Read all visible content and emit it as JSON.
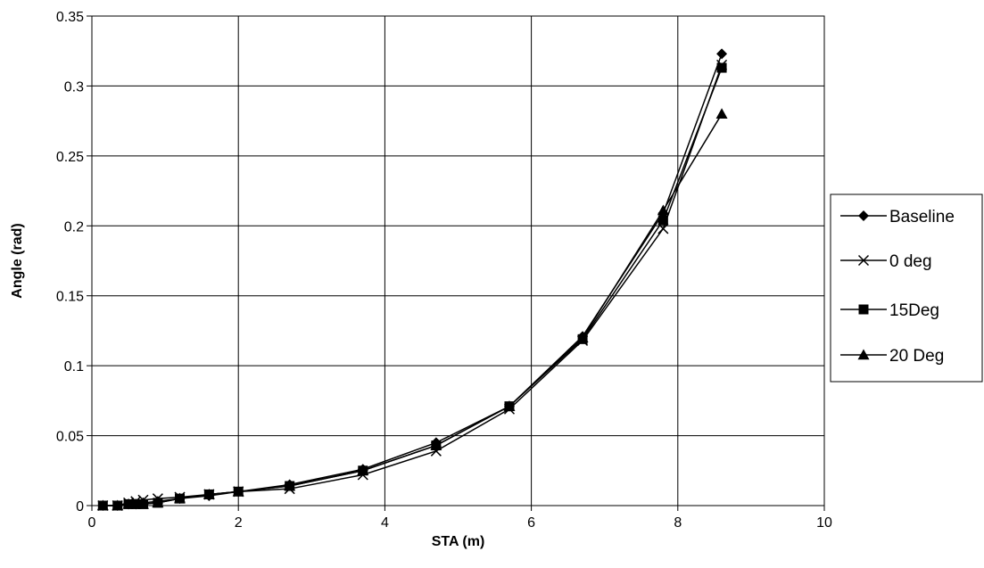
{
  "chart_data": {
    "type": "line",
    "title": "",
    "xlabel": "STA (m)",
    "ylabel": "Angle (rad)",
    "xlim": [
      0,
      10
    ],
    "ylim": [
      0,
      0.35
    ],
    "xticks": [
      0,
      2,
      4,
      6,
      8,
      10
    ],
    "xtick_labels": [
      "0",
      "2",
      "4",
      "6",
      "8",
      "10"
    ],
    "yticks": [
      0,
      0.05,
      0.1,
      0.15,
      0.2,
      0.25,
      0.3,
      0.35
    ],
    "ytick_labels": [
      "0",
      "0.05",
      "0.1",
      "0.15",
      "0.2",
      "0.25",
      "0.3",
      "0.35"
    ],
    "grid": true,
    "legend_position": "right",
    "series": [
      {
        "name": "Baseline",
        "marker": "diamond",
        "color": "#000000",
        "x": [
          0.15,
          0.35,
          0.5,
          0.6,
          0.7,
          0.9,
          1.2,
          1.6,
          2.0,
          2.7,
          3.7,
          4.7,
          5.7,
          6.7,
          7.8,
          8.6
        ],
        "y": [
          0.0,
          0.0,
          0.001,
          0.001,
          0.002,
          0.003,
          0.005,
          0.007,
          0.01,
          0.015,
          0.026,
          0.045,
          0.071,
          0.121,
          0.209,
          0.323
        ]
      },
      {
        "name": "0 deg",
        "marker": "x",
        "color": "#000000",
        "x": [
          0.15,
          0.35,
          0.5,
          0.6,
          0.7,
          0.9,
          1.2,
          1.6,
          2.0,
          2.7,
          3.7,
          4.7,
          5.7,
          6.7,
          7.8,
          8.6
        ],
        "y": [
          0.0,
          0.0,
          0.002,
          0.003,
          0.004,
          0.005,
          0.006,
          0.008,
          0.01,
          0.012,
          0.022,
          0.039,
          0.069,
          0.118,
          0.198,
          0.315
        ]
      },
      {
        "name": "15Deg",
        "marker": "square",
        "color": "#000000",
        "x": [
          0.15,
          0.35,
          0.5,
          0.6,
          0.7,
          0.9,
          1.2,
          1.6,
          2.0,
          2.7,
          3.7,
          4.7,
          5.7,
          6.7,
          7.8,
          8.6
        ],
        "y": [
          0.0,
          0.0,
          0.001,
          0.001,
          0.001,
          0.002,
          0.005,
          0.008,
          0.01,
          0.014,
          0.025,
          0.043,
          0.071,
          0.119,
          0.204,
          0.313
        ]
      },
      {
        "name": "20 Deg",
        "marker": "triangle",
        "color": "#000000",
        "x": [
          0.15,
          0.35,
          0.5,
          0.6,
          0.7,
          0.9,
          1.2,
          1.6,
          2.0,
          2.7,
          3.7,
          4.7,
          5.7,
          6.7,
          7.8,
          8.6
        ],
        "y": [
          0.0,
          0.0,
          0.001,
          0.001,
          0.001,
          0.002,
          0.005,
          0.008,
          0.01,
          0.014,
          0.025,
          0.043,
          0.071,
          0.12,
          0.211,
          0.28
        ]
      }
    ]
  }
}
